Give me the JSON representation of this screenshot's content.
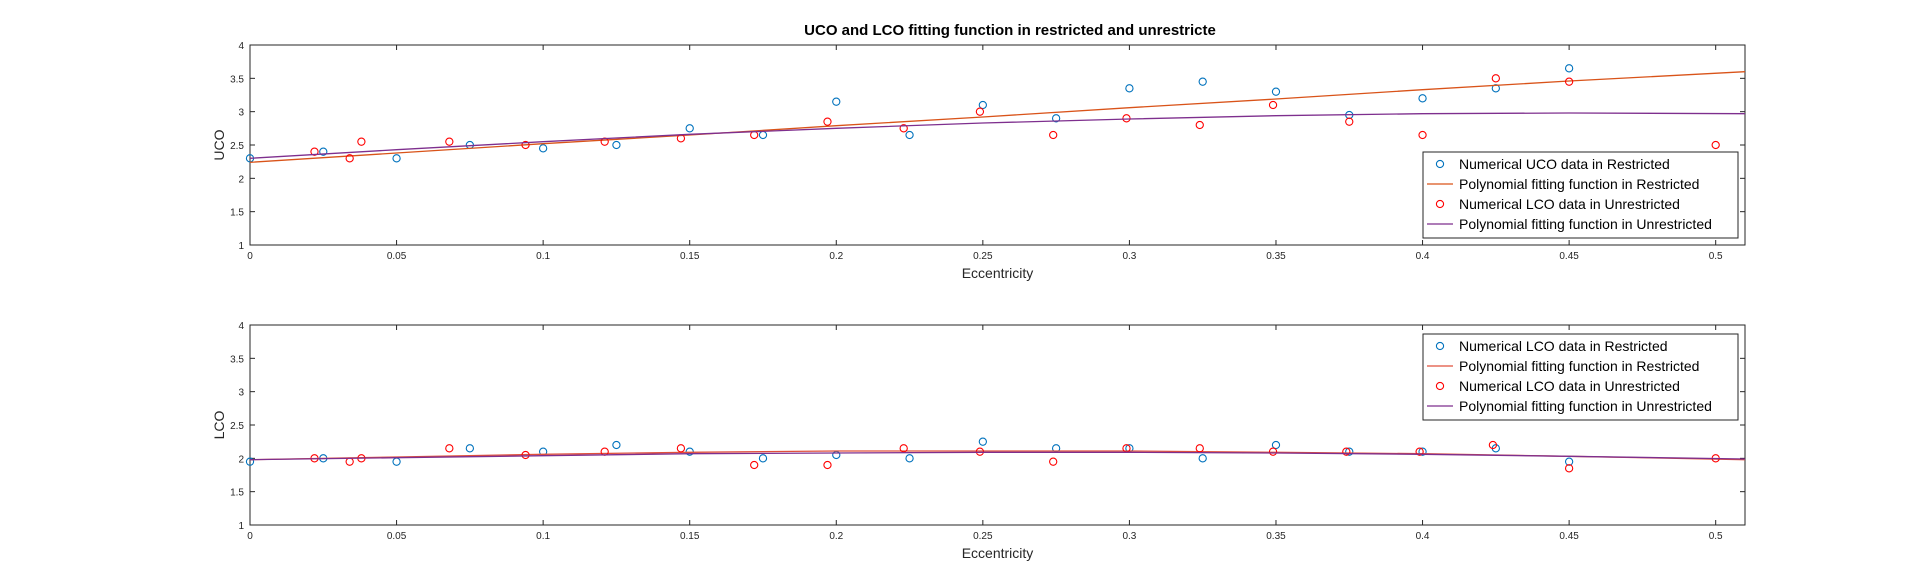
{
  "figure": {
    "title": "UCO and LCO fitting function in restricted and unrestricte"
  },
  "chart_data": [
    {
      "type": "scatter",
      "ylabel": "UCO",
      "xlabel": "Eccentricity",
      "xlim": [
        0,
        0.51
      ],
      "ylim": [
        1,
        4
      ],
      "xticks": [
        "0",
        "0.05",
        "0.1",
        "0.15",
        "0.2",
        "0.25",
        "0.3",
        "0.35",
        "0.4",
        "0.45",
        "0.5"
      ],
      "yticks": [
        "1",
        "1.5",
        "2",
        "2.5",
        "3",
        "3.5",
        "4"
      ],
      "grid": false,
      "legend_position": "bottom-right",
      "series": [
        {
          "name": "Numerical UCO data in Restricted",
          "kind": "markers",
          "color": "#0072BD",
          "x": [
            0,
            0.025,
            0.05,
            0.075,
            0.1,
            0.125,
            0.15,
            0.175,
            0.2,
            0.225,
            0.25,
            0.275,
            0.3,
            0.325,
            0.35,
            0.375,
            0.4,
            0.425,
            0.45
          ],
          "y": [
            2.3,
            2.4,
            2.3,
            2.5,
            2.45,
            2.5,
            2.75,
            2.65,
            3.15,
            2.65,
            3.1,
            2.9,
            3.35,
            3.45,
            3.3,
            2.95,
            3.2,
            3.35,
            3.65
          ]
        },
        {
          "name": "Polynomial fitting function in Restricted",
          "kind": "line",
          "color": "#D95319",
          "x": [
            0,
            0.05,
            0.1,
            0.15,
            0.2,
            0.25,
            0.3,
            0.35,
            0.4,
            0.45,
            0.51
          ],
          "y": [
            2.24,
            2.38,
            2.52,
            2.65,
            2.79,
            2.92,
            3.06,
            3.19,
            3.33,
            3.46,
            3.6
          ]
        },
        {
          "name": "Numerical LCO data in Unrestricted",
          "kind": "markers",
          "color": "#FF0000",
          "x": [
            0.022,
            0.034,
            0.038,
            0.068,
            0.094,
            0.121,
            0.147,
            0.172,
            0.197,
            0.223,
            0.249,
            0.274,
            0.299,
            0.324,
            0.349,
            0.375,
            0.4,
            0.425,
            0.45,
            0.5
          ],
          "y": [
            2.4,
            2.3,
            2.55,
            2.55,
            2.5,
            2.55,
            2.6,
            2.65,
            2.85,
            2.75,
            3.0,
            2.65,
            2.9,
            2.8,
            3.1,
            2.85,
            2.65,
            3.5,
            3.45,
            2.5
          ]
        },
        {
          "name": "Polynomial fitting function in Unrestricted",
          "kind": "line",
          "color": "#7E2F8E",
          "x": [
            0,
            0.05,
            0.1,
            0.15,
            0.2,
            0.25,
            0.3,
            0.35,
            0.4,
            0.45,
            0.51
          ],
          "y": [
            2.3,
            2.43,
            2.55,
            2.66,
            2.75,
            2.83,
            2.89,
            2.94,
            2.97,
            2.98,
            2.97
          ]
        }
      ]
    },
    {
      "type": "scatter",
      "ylabel": "LCO",
      "xlabel": "Eccentricity",
      "xlim": [
        0,
        0.51
      ],
      "ylim": [
        1,
        4
      ],
      "xticks": [
        "0",
        "0.05",
        "0.1",
        "0.15",
        "0.2",
        "0.25",
        "0.3",
        "0.35",
        "0.4",
        "0.45",
        "0.5"
      ],
      "yticks": [
        "1",
        "1.5",
        "2",
        "2.5",
        "3",
        "3.5",
        "4"
      ],
      "grid": false,
      "legend_position": "top-right",
      "series": [
        {
          "name": "Numerical LCO data in Restricted",
          "kind": "markers",
          "color": "#0072BD",
          "x": [
            0,
            0.025,
            0.05,
            0.075,
            0.1,
            0.125,
            0.15,
            0.175,
            0.2,
            0.225,
            0.25,
            0.275,
            0.3,
            0.325,
            0.35,
            0.375,
            0.4,
            0.425,
            0.45
          ],
          "y": [
            1.95,
            2.0,
            1.95,
            2.15,
            2.1,
            2.2,
            2.1,
            2.0,
            2.05,
            2.0,
            2.25,
            2.15,
            2.15,
            2.0,
            2.2,
            2.1,
            2.1,
            2.15,
            1.95
          ]
        },
        {
          "name": "Polynomial fitting function in Restricted",
          "kind": "line",
          "color": "#E0503C",
          "x": [
            0,
            0.05,
            0.1,
            0.15,
            0.2,
            0.25,
            0.3,
            0.35,
            0.4,
            0.45,
            0.51
          ],
          "y": [
            1.98,
            2.02,
            2.06,
            2.09,
            2.11,
            2.11,
            2.11,
            2.09,
            2.07,
            2.03,
            1.98
          ]
        },
        {
          "name": "Numerical LCO data in Unrestricted",
          "kind": "markers",
          "color": "#FF0000",
          "x": [
            0.022,
            0.034,
            0.038,
            0.068,
            0.094,
            0.121,
            0.147,
            0.172,
            0.197,
            0.223,
            0.249,
            0.274,
            0.299,
            0.324,
            0.349,
            0.374,
            0.399,
            0.424,
            0.45,
            0.5
          ],
          "y": [
            2.0,
            1.95,
            2.0,
            2.15,
            2.05,
            2.1,
            2.15,
            1.9,
            1.9,
            2.15,
            2.1,
            1.95,
            2.15,
            2.15,
            2.1,
            2.1,
            2.1,
            2.2,
            1.85,
            2.0
          ]
        },
        {
          "name": "Polynomial fitting function in Unrestricted",
          "kind": "line",
          "color": "#7E2F8E",
          "x": [
            0,
            0.05,
            0.1,
            0.15,
            0.2,
            0.25,
            0.3,
            0.35,
            0.4,
            0.45,
            0.51
          ],
          "y": [
            1.98,
            2.01,
            2.04,
            2.07,
            2.08,
            2.09,
            2.09,
            2.08,
            2.06,
            2.03,
            1.99
          ]
        }
      ]
    }
  ]
}
